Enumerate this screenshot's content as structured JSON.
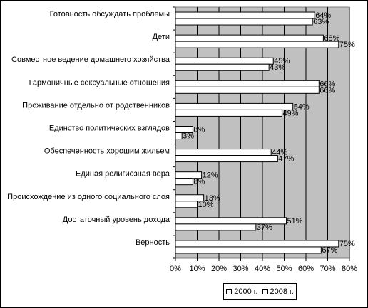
{
  "chart_data": {
    "type": "bar",
    "orientation": "horizontal",
    "title": "",
    "xlabel": "",
    "ylabel": "",
    "xlim": [
      0,
      80
    ],
    "x_ticks": [
      "0%",
      "10%",
      "20%",
      "30%",
      "40%",
      "50%",
      "60%",
      "70%",
      "80%"
    ],
    "grid": true,
    "legend_position": "bottom-center",
    "plot_background": "#c0c0c0",
    "bar_fill": "#ffffff",
    "categories": [
      "Готовность обсуждать проблемы",
      "Дети",
      "Совместное ведение домашнего хозяйства",
      "Гармоничные сексуальные отношения",
      "Проживание отдельно от родственников",
      "Единство политических взглядов",
      "Обеспеченность хорошим жильем",
      "Единая религиозная вера",
      "Происхождение из одного социального слоя",
      "Достаточный уровень дохода",
      "Верность"
    ],
    "series": [
      {
        "name": "2000 г.",
        "values": [
          64,
          68,
          45,
          66,
          54,
          8,
          44,
          12,
          13,
          51,
          75
        ],
        "labels": [
          "64%",
          "68%",
          "45%",
          "66%",
          "54%",
          "8%",
          "44%",
          "12%",
          "13%",
          "51%",
          "75%"
        ]
      },
      {
        "name": "2008 г.",
        "values": [
          63,
          75,
          43,
          66,
          49,
          3,
          47,
          8,
          10,
          37,
          67
        ],
        "labels": [
          "63%",
          "75%",
          "43%",
          "66%",
          "49%",
          "3%",
          "47%",
          "8%",
          "10%",
          "37%",
          "67%"
        ]
      }
    ]
  }
}
